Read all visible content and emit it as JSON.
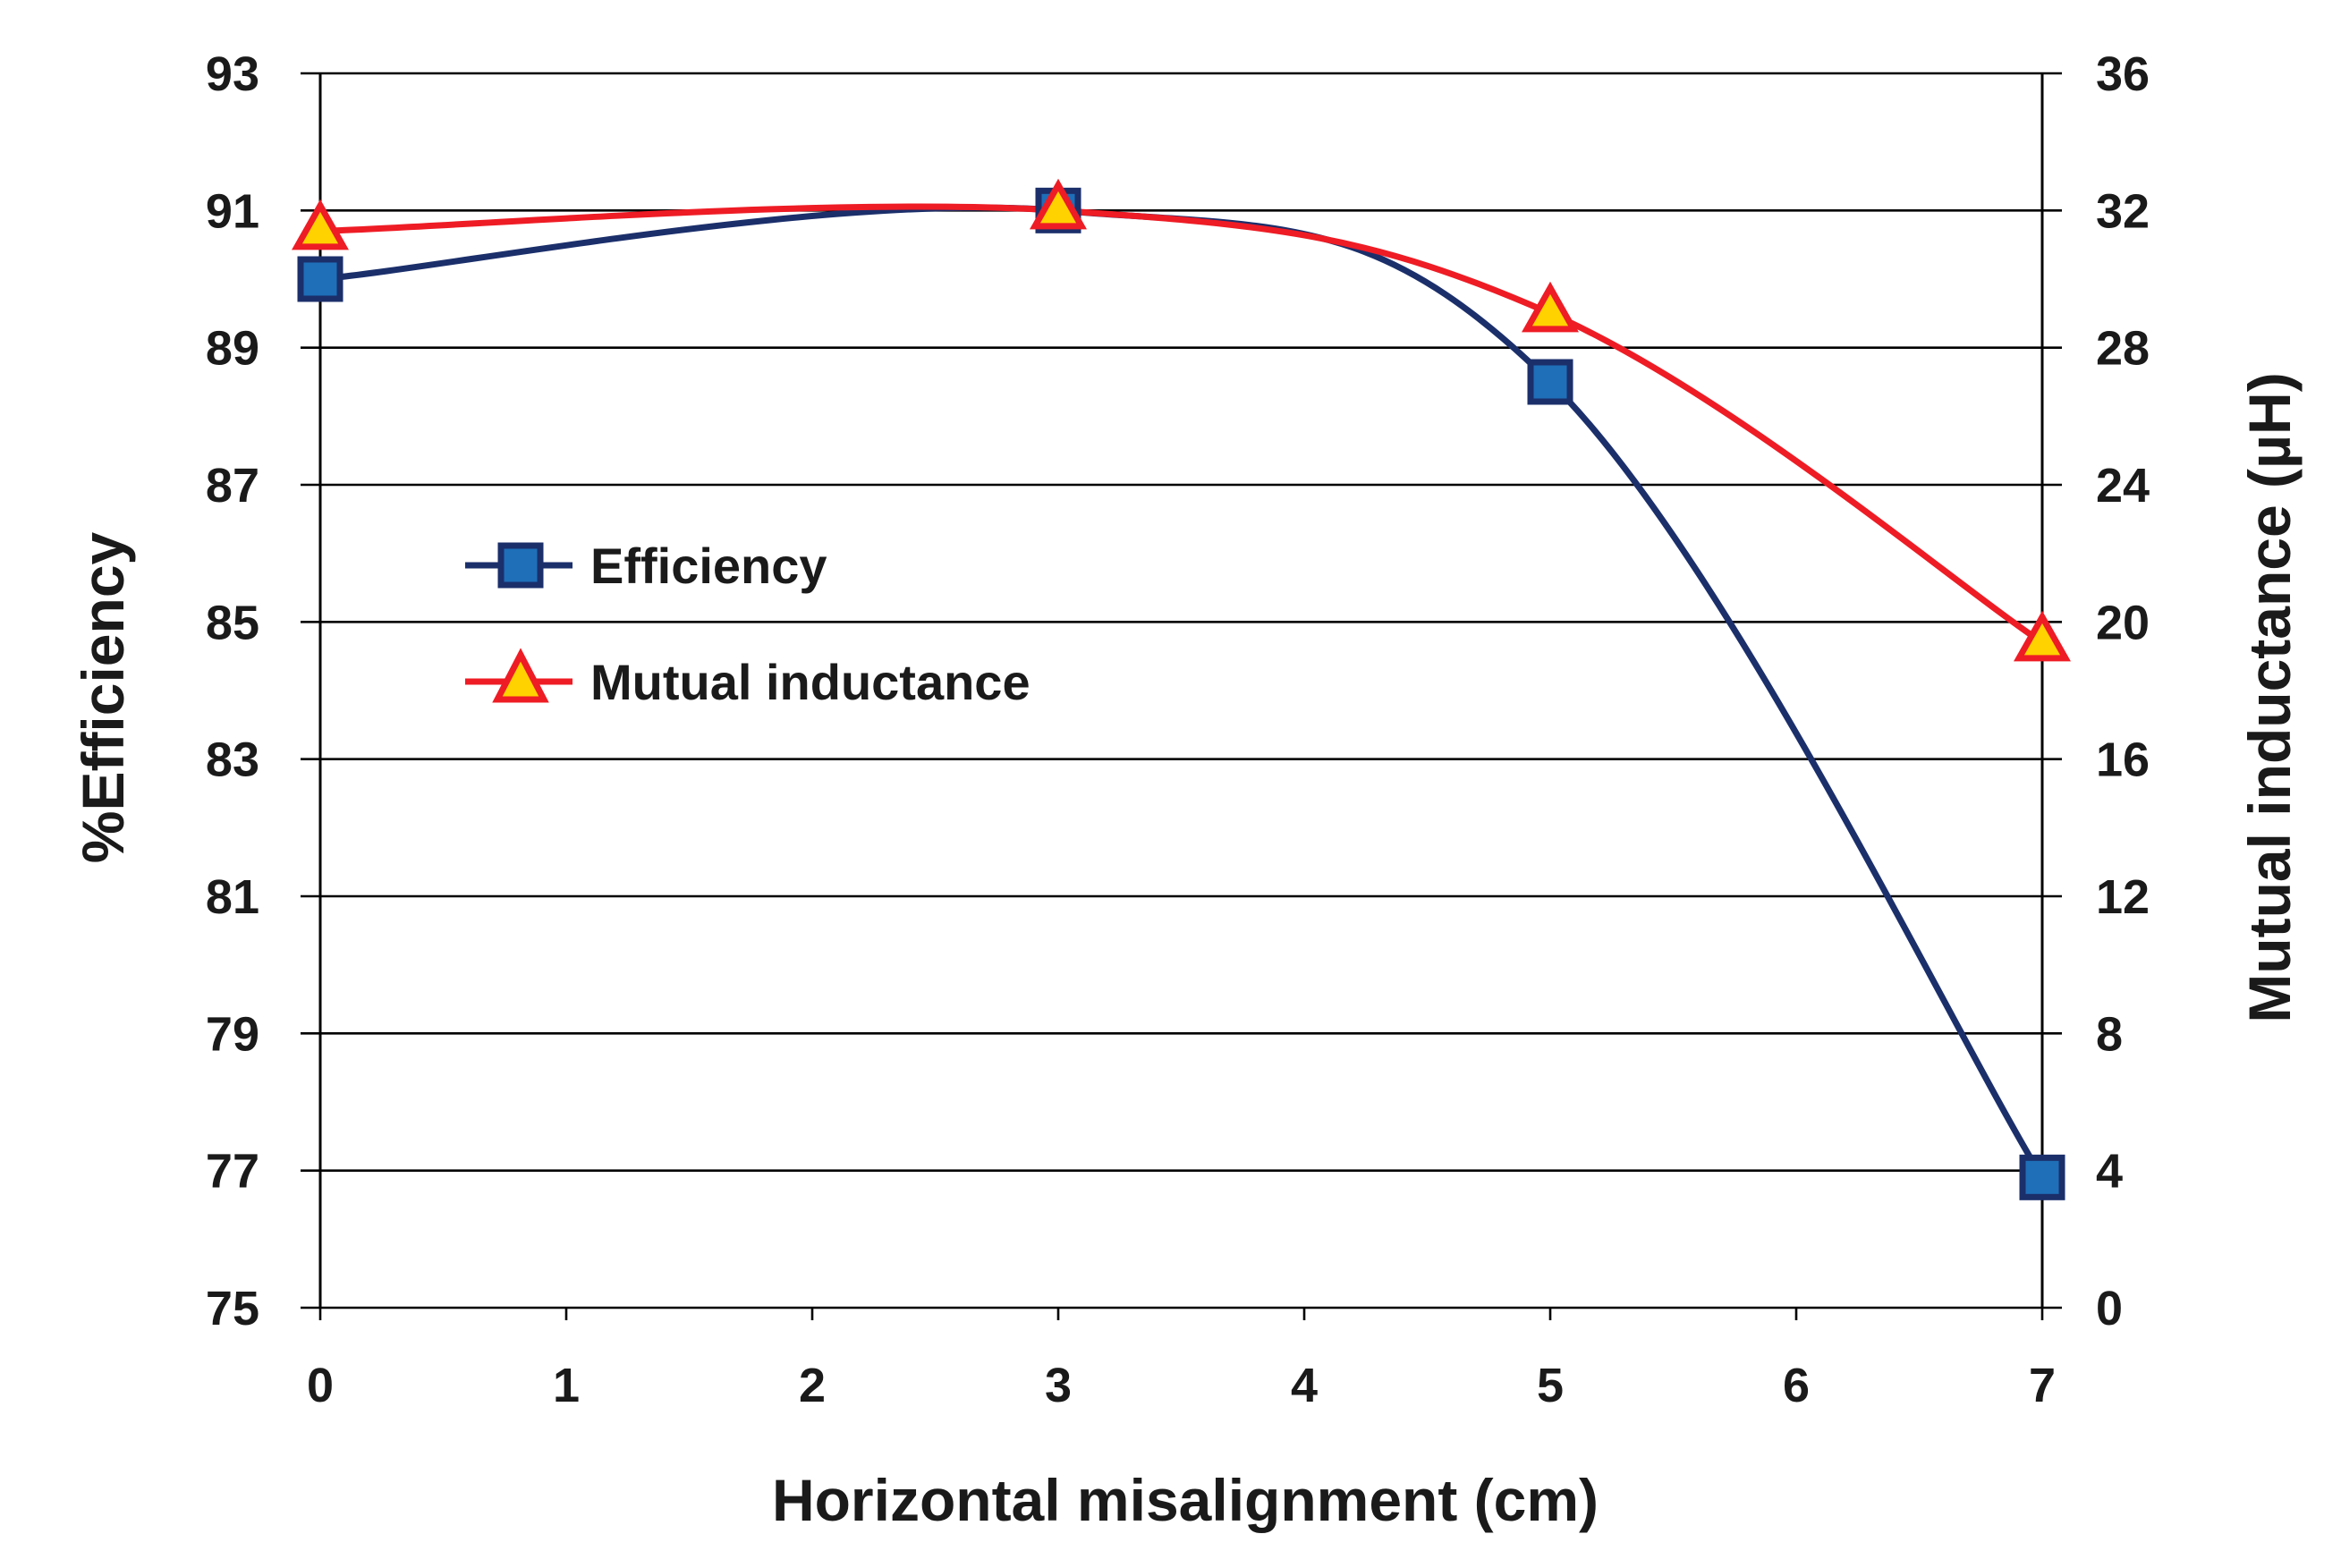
{
  "chart_data": {
    "type": "line",
    "title": "",
    "xlabel": "Horizontal misalignment (cm)",
    "ylabel": "%Efficiency",
    "y2label": "Mutual inductance (µH)",
    "xlim": [
      0,
      7
    ],
    "ylim": [
      75,
      93
    ],
    "y2lim": [
      0,
      36
    ],
    "x_ticks": [
      "0",
      "1",
      "2",
      "3",
      "4",
      "5",
      "6",
      "7"
    ],
    "y_ticks": [
      "75",
      "77",
      "79",
      "81",
      "83",
      "85",
      "87",
      "89",
      "91",
      "93"
    ],
    "y2_ticks": [
      "0",
      "4",
      "8",
      "12",
      "16",
      "20",
      "24",
      "28",
      "32",
      "36"
    ],
    "grid": true,
    "legend_position": "center-left",
    "series": [
      {
        "name": "Efficiency",
        "axis": "left",
        "marker": "square",
        "color": "#1b2f6b",
        "marker_fill": "#1e6fb8",
        "x": [
          0,
          3,
          5,
          7
        ],
        "values": [
          90.0,
          91.0,
          88.5,
          76.9
        ]
      },
      {
        "name": "Mutual inductance",
        "axis": "right",
        "marker": "triangle",
        "color": "#ee1c25",
        "marker_fill": "#ffd200",
        "x": [
          0,
          3,
          5,
          7
        ],
        "values": [
          31.4,
          32.0,
          29.0,
          19.4
        ]
      }
    ]
  }
}
